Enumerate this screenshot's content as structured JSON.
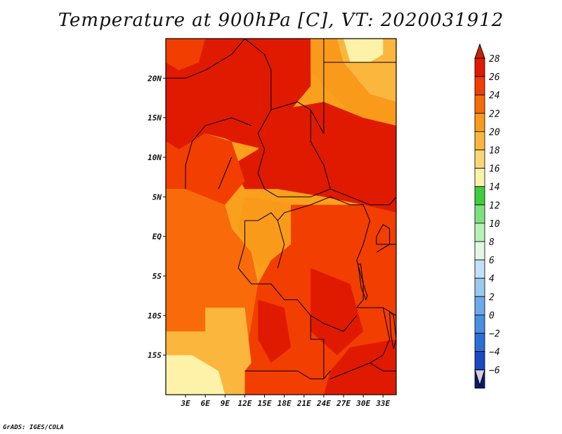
{
  "title": "Temperature at 900hPa [C], VT: 2020031912",
  "credit": "GrADS: IGES/COLA",
  "map": {
    "lon_range": [
      0,
      35
    ],
    "lat_range": [
      -20,
      25
    ],
    "lat_ticks": [
      {
        "value": 20,
        "label": "20N"
      },
      {
        "value": 15,
        "label": "15N"
      },
      {
        "value": 10,
        "label": "10N"
      },
      {
        "value": 5,
        "label": "5N"
      },
      {
        "value": 0,
        "label": "EQ"
      },
      {
        "value": -5,
        "label": "5S"
      },
      {
        "value": -10,
        "label": "10S"
      },
      {
        "value": -15,
        "label": "15S"
      }
    ],
    "lon_ticks": [
      {
        "value": 3,
        "label": "3E"
      },
      {
        "value": 6,
        "label": "6E"
      },
      {
        "value": 9,
        "label": "9E"
      },
      {
        "value": 12,
        "label": "12E"
      },
      {
        "value": 15,
        "label": "15E"
      },
      {
        "value": 18,
        "label": "18E"
      },
      {
        "value": 21,
        "label": "21E"
      },
      {
        "value": 24,
        "label": "24E"
      },
      {
        "value": 27,
        "label": "27E"
      },
      {
        "value": 30,
        "label": "30E"
      },
      {
        "value": 33,
        "label": "33E"
      }
    ],
    "regions": [
      {
        "name": "northwest-hot",
        "temp": 26,
        "poly": [
          [
            0,
            25
          ],
          [
            22,
            25
          ],
          [
            22,
            19
          ],
          [
            17,
            14
          ],
          [
            11,
            12
          ],
          [
            6,
            13
          ],
          [
            2,
            11
          ],
          [
            0,
            12
          ]
        ]
      },
      {
        "name": "north-central-hot",
        "temp": 27,
        "poly": [
          [
            3,
            19
          ],
          [
            13,
            20
          ],
          [
            17,
            16
          ],
          [
            15,
            11
          ],
          [
            10,
            12
          ],
          [
            5,
            14
          ],
          [
            2,
            16
          ]
        ]
      },
      {
        "name": "northwest-corner",
        "temp": 24,
        "poly": [
          [
            0,
            25
          ],
          [
            6,
            25
          ],
          [
            5,
            22
          ],
          [
            2,
            21
          ],
          [
            0,
            22
          ]
        ]
      },
      {
        "name": "northeast-mild",
        "temp": 20,
        "poly": [
          [
            22,
            25
          ],
          [
            35,
            25
          ],
          [
            35,
            14
          ],
          [
            29,
            15
          ],
          [
            24,
            19
          ],
          [
            22,
            21
          ]
        ]
      },
      {
        "name": "northeast-cool",
        "temp": 18,
        "poly": [
          [
            26,
            25
          ],
          [
            35,
            25
          ],
          [
            35,
            17
          ],
          [
            31,
            18
          ],
          [
            27,
            22
          ]
        ]
      },
      {
        "name": "sahel-east-hot",
        "temp": 27,
        "poly": [
          [
            17,
            16
          ],
          [
            24,
            17
          ],
          [
            30,
            15
          ],
          [
            35,
            14
          ],
          [
            35,
            3
          ],
          [
            30,
            4
          ],
          [
            24,
            5
          ],
          [
            17,
            6
          ],
          [
            12,
            6
          ],
          [
            10,
            9
          ],
          [
            14,
            11
          ]
        ]
      },
      {
        "name": "west-coast-band",
        "temp": 24,
        "poly": [
          [
            0,
            12
          ],
          [
            2,
            11
          ],
          [
            6,
            13
          ],
          [
            10,
            12
          ],
          [
            12,
            7
          ],
          [
            9,
            4
          ],
          [
            5,
            5
          ],
          [
            3,
            6
          ],
          [
            0,
            6
          ]
        ]
      },
      {
        "name": "coast-warm",
        "temp": 22,
        "poly": [
          [
            0,
            6
          ],
          [
            3,
            6
          ],
          [
            6,
            5
          ],
          [
            9,
            4
          ],
          [
            10,
            1
          ],
          [
            13,
            -2
          ],
          [
            14,
            -6
          ],
          [
            13,
            -11
          ],
          [
            12,
            -16
          ],
          [
            12,
            -20
          ],
          [
            0,
            -20
          ]
        ]
      },
      {
        "name": "congo-mid",
        "temp": 21,
        "poly": [
          [
            12,
            5
          ],
          [
            20,
            4
          ],
          [
            19,
            -1
          ],
          [
            16,
            -3
          ],
          [
            14,
            -4
          ],
          [
            13,
            -2
          ],
          [
            11,
            1
          ]
        ]
      },
      {
        "name": "congo-east",
        "temp": 24,
        "poly": [
          [
            19,
            4
          ],
          [
            30,
            4
          ],
          [
            35,
            3
          ],
          [
            35,
            -20
          ],
          [
            12,
            -20
          ],
          [
            12,
            -16
          ],
          [
            13,
            -11
          ],
          [
            14,
            -6
          ],
          [
            16,
            -3
          ],
          [
            19,
            -1
          ]
        ]
      },
      {
        "name": "central-hot-a",
        "temp": 26,
        "poly": [
          [
            22,
            -4
          ],
          [
            28,
            -6
          ],
          [
            30,
            -12
          ],
          [
            26,
            -15
          ],
          [
            22,
            -12
          ]
        ]
      },
      {
        "name": "southeast-hot",
        "temp": 27,
        "poly": [
          [
            28,
            -14
          ],
          [
            35,
            -13
          ],
          [
            35,
            -20
          ],
          [
            24,
            -20
          ],
          [
            25,
            -17
          ]
        ]
      },
      {
        "name": "angola-hot",
        "temp": 26,
        "poly": [
          [
            14,
            -8
          ],
          [
            18,
            -9
          ],
          [
            19,
            -14
          ],
          [
            16,
            -16
          ],
          [
            14,
            -13
          ]
        ]
      },
      {
        "name": "southwest-mild",
        "temp": 18,
        "poly": [
          [
            0,
            -12
          ],
          [
            12,
            -12
          ],
          [
            12,
            -20
          ],
          [
            0,
            -20
          ]
        ]
      },
      {
        "name": "southwest-coast-mild",
        "temp": 19,
        "poly": [
          [
            6,
            -9
          ],
          [
            12,
            -9
          ],
          [
            13,
            -16
          ],
          [
            9,
            -20
          ],
          [
            6,
            -14
          ]
        ]
      },
      {
        "name": "southwest-cool",
        "temp": 14,
        "poly": [
          [
            0,
            -15
          ],
          [
            4,
            -15
          ],
          [
            8,
            -17
          ],
          [
            9,
            -20
          ],
          [
            0,
            -20
          ]
        ]
      },
      {
        "name": "northeast-green",
        "temp": 14,
        "poly": [
          [
            27,
            25
          ],
          [
            33,
            25
          ],
          [
            33,
            23
          ],
          [
            31,
            22
          ],
          [
            28,
            22
          ]
        ]
      }
    ],
    "borders": [
      [
        [
          12,
          25
        ],
        [
          10,
          23
        ],
        [
          6,
          21
        ],
        [
          3,
          20
        ],
        [
          0,
          20
        ]
      ],
      [
        [
          12,
          25
        ],
        [
          15,
          23
        ],
        [
          16,
          21
        ],
        [
          16,
          16
        ],
        [
          14,
          13
        ],
        [
          15,
          11
        ],
        [
          14,
          8
        ]
      ],
      [
        [
          16,
          16
        ],
        [
          20,
          17
        ],
        [
          22,
          16
        ],
        [
          24,
          13
        ],
        [
          24,
          20
        ],
        [
          24,
          25
        ]
      ],
      [
        [
          24,
          22
        ],
        [
          35,
          22
        ]
      ],
      [
        [
          22,
          16
        ],
        [
          22,
          12
        ],
        [
          24,
          9
        ],
        [
          25,
          6
        ],
        [
          28,
          5
        ],
        [
          31,
          4
        ],
        [
          34,
          4
        ],
        [
          35,
          5
        ]
      ],
      [
        [
          13,
          14
        ],
        [
          10,
          15
        ],
        [
          6,
          14
        ],
        [
          4,
          12
        ],
        [
          3,
          9
        ],
        [
          3,
          6
        ]
      ],
      [
        [
          10,
          10
        ],
        [
          9,
          8
        ],
        [
          8,
          6
        ]
      ],
      [
        [
          14,
          8
        ],
        [
          15,
          6
        ],
        [
          17,
          5
        ],
        [
          20,
          5
        ],
        [
          22,
          5
        ],
        [
          25,
          6
        ]
      ],
      [
        [
          12,
          2
        ],
        [
          14,
          2
        ],
        [
          16,
          3
        ],
        [
          17,
          2
        ],
        [
          18,
          -1
        ],
        [
          17,
          -4
        ]
      ],
      [
        [
          12,
          2
        ],
        [
          12,
          -1
        ],
        [
          11,
          -4
        ],
        [
          12,
          -5
        ]
      ],
      [
        [
          17,
          2
        ],
        [
          18,
          3
        ],
        [
          22,
          4
        ],
        [
          25,
          5
        ],
        [
          28,
          4
        ],
        [
          30,
          4
        ]
      ],
      [
        [
          30,
          4
        ],
        [
          31,
          2
        ],
        [
          30,
          -1
        ],
        [
          29,
          -3
        ],
        [
          30,
          -6
        ],
        [
          30,
          -8
        ],
        [
          29,
          -9
        ]
      ],
      [
        [
          12,
          -5
        ],
        [
          13,
          -6
        ],
        [
          16,
          -6
        ],
        [
          18,
          -8
        ],
        [
          20,
          -8
        ],
        [
          22,
          -10
        ],
        [
          24,
          -11
        ],
        [
          27,
          -12
        ],
        [
          29,
          -10
        ]
      ],
      [
        [
          12,
          -17
        ],
        [
          15,
          -17
        ],
        [
          20,
          -17
        ],
        [
          22,
          -18
        ],
        [
          24,
          -18
        ],
        [
          25,
          -17
        ]
      ],
      [
        [
          22,
          -10
        ],
        [
          22,
          -13
        ],
        [
          24,
          -13
        ],
        [
          24,
          -18
        ]
      ],
      [
        [
          29,
          -9
        ],
        [
          33,
          -9
        ],
        [
          35,
          -10
        ]
      ],
      [
        [
          33,
          -9
        ],
        [
          34,
          -13
        ],
        [
          33,
          -15
        ],
        [
          31,
          -16
        ],
        [
          28,
          -17
        ],
        [
          25,
          -18
        ]
      ],
      [
        [
          31,
          -16
        ],
        [
          33,
          -17
        ],
        [
          35,
          -17
        ]
      ],
      [
        [
          32,
          -2
        ],
        [
          34,
          -1
        ],
        [
          35,
          -1
        ]
      ]
    ],
    "lakes": [
      [
        [
          32,
          -1
        ],
        [
          34,
          -1
        ],
        [
          34,
          1
        ],
        [
          33,
          1.5
        ],
        [
          32,
          0
        ]
      ],
      [
        [
          29.2,
          -3.5
        ],
        [
          29.6,
          -3.5
        ],
        [
          30,
          -6
        ],
        [
          30.6,
          -7.5
        ],
        [
          30.4,
          -8
        ],
        [
          29.7,
          -6.5
        ]
      ],
      [
        [
          34,
          -9.5
        ],
        [
          34.6,
          -10
        ],
        [
          35,
          -13
        ],
        [
          34.6,
          -14.2
        ],
        [
          34.2,
          -12.5
        ]
      ]
    ]
  },
  "colorbar": {
    "levels": [
      28,
      26,
      24,
      22,
      20,
      18,
      16,
      14,
      12,
      10,
      8,
      6,
      4,
      2,
      0,
      -2,
      -4,
      -6
    ],
    "labels": [
      "28",
      "26",
      "24",
      "22",
      "20",
      "18",
      "16",
      "14",
      "12",
      "10",
      "8",
      "6",
      "4",
      "2",
      "0",
      "−2",
      "−4",
      "−6"
    ],
    "top_color": "#cc2200",
    "bottom_color": "#d0cbe8",
    "colors": [
      "#e01a00",
      "#f23e00",
      "#f86a0a",
      "#f99a1a",
      "#fbb63e",
      "#fcd676",
      "#fdf2a8",
      "#3fcc3f",
      "#7de27d",
      "#b6f2b6",
      "#e2f8e2",
      "#c2e0f6",
      "#9ac9f0",
      "#6eaae8",
      "#4a8ee2",
      "#2a6ed8",
      "#1a4ac0",
      "#0a1a6e"
    ]
  }
}
